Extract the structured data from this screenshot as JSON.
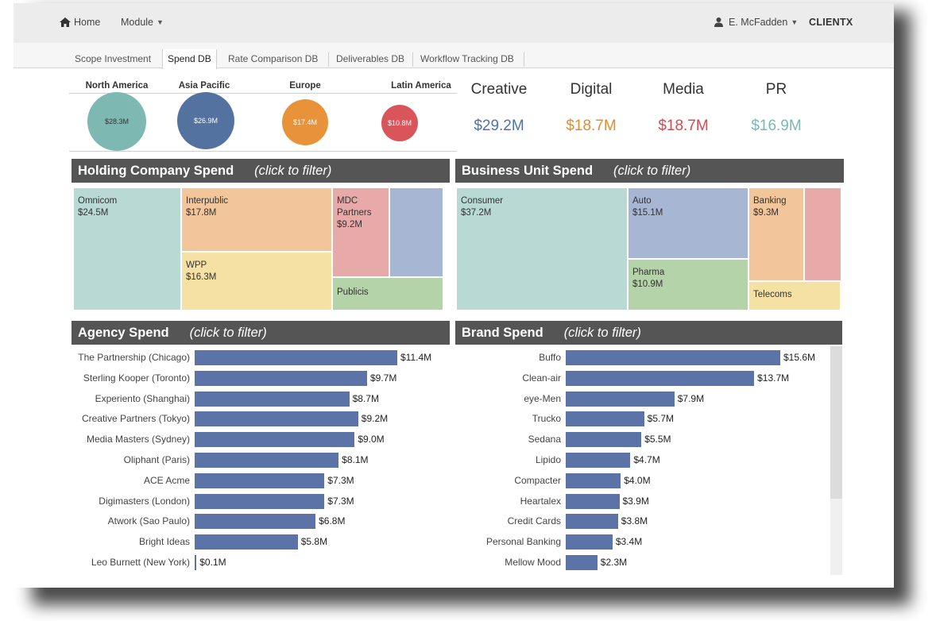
{
  "nav": {
    "home_label": "Home",
    "module_label": "Module",
    "user_label": "E. McFadden",
    "client_label": "CLIENTX"
  },
  "tabs": [
    {
      "label": "Scope Investment",
      "active": false
    },
    {
      "label": "Spend DB",
      "active": true
    },
    {
      "label": "Rate Comparison DB",
      "active": false
    },
    {
      "label": "Deliverables DB",
      "active": false
    },
    {
      "label": "Workflow Tracking DB",
      "active": false
    }
  ],
  "regions": [
    {
      "name": "North America",
      "value": "$28.3M",
      "color": "#7eb8b2"
    },
    {
      "name": "Asia Pacific",
      "value": "$26.9M",
      "color": "#5472a0"
    },
    {
      "name": "Europe",
      "value": "$17.4M",
      "color": "#e8923a"
    },
    {
      "name": "Latin America",
      "value": "$10.8M",
      "color": "#d9555a"
    }
  ],
  "categories": [
    {
      "name": "Creative",
      "value": "$29.2M",
      "color": "#4e73a8"
    },
    {
      "name": "Digital",
      "value": "$18.7M",
      "color": "#e58a2e"
    },
    {
      "name": "Media",
      "value": "$18.7M",
      "color": "#d9474f"
    },
    {
      "name": "PR",
      "value": "$16.9M",
      "color": "#7ab9b1"
    }
  ],
  "holding": {
    "title": "Holding Company Spend",
    "hint": "(click to filter)",
    "items": [
      {
        "name": "Omnicom",
        "value": "$24.5M",
        "color": "#b9d9d5"
      },
      {
        "name": "Interpublic",
        "value": "$17.8M",
        "color": "#f2c59a"
      },
      {
        "name": "WPP",
        "value": "$16.3M",
        "color": "#f4e1a3"
      },
      {
        "name": "MDC\nPartners",
        "value": "$9.2M",
        "color": "#e8aaa9"
      },
      {
        "name": "",
        "value": "",
        "color": "#a7b6d2"
      },
      {
        "name": "Publicis",
        "value": "",
        "color": "#b4d3a9"
      }
    ]
  },
  "business": {
    "title": "Business Unit Spend",
    "hint": "(click to filter)",
    "items": [
      {
        "name": "Consumer",
        "value": "$37.2M",
        "color": "#b9d9d5"
      },
      {
        "name": "Auto",
        "value": "$15.1M",
        "color": "#a7b6d2"
      },
      {
        "name": "Pharma",
        "value": "$10.9M",
        "color": "#b4d3a9"
      },
      {
        "name": "Banking",
        "value": "$9.3M",
        "color": "#f2c59a"
      },
      {
        "name": "",
        "value": "",
        "color": "#e8aaa9"
      },
      {
        "name": "Telecoms",
        "value": "",
        "color": "#f4e1a3"
      }
    ]
  },
  "agency": {
    "title": "Agency Spend",
    "hint": "(click to filter)"
  },
  "brand": {
    "title": "Brand Spend",
    "hint": "(click to filter)"
  },
  "chart_data": [
    {
      "type": "bar",
      "title": "Agency Spend",
      "orientation": "horizontal",
      "categories": [
        "The Partnership (Chicago)",
        "Sterling Kooper (Toronto)",
        "Experiento (Shanghai)",
        "Creative Partners (Tokyo)",
        "Media Masters (Sydney)",
        "Oliphant (Paris)",
        "ACE Acme",
        "Digimasters (London)",
        "Atwork (Sao Paulo)",
        "Bright Ideas",
        "Leo Burnett (New York)"
      ],
      "values": [
        11.4,
        9.7,
        8.7,
        9.2,
        9.0,
        8.1,
        7.3,
        7.3,
        6.8,
        5.8,
        0.1
      ],
      "value_labels": [
        "$11.4M",
        "$9.7M",
        "$8.7M",
        "$9.2M",
        "$9.0M",
        "$8.1M",
        "$7.3M",
        "$7.3M",
        "$6.8M",
        "$5.8M",
        "$0.1M"
      ],
      "color": "#5b73a6"
    },
    {
      "type": "bar",
      "title": "Brand Spend",
      "orientation": "horizontal",
      "categories": [
        "Buffo",
        "Clean-air",
        "eye-Men",
        "Trucko",
        "Sedana",
        "Lipido",
        "Compacter",
        "Heartalex",
        "Credit Cards",
        "Personal Banking",
        "Mellow Mood"
      ],
      "values": [
        15.6,
        13.7,
        7.9,
        5.7,
        5.5,
        4.7,
        4.0,
        3.9,
        3.8,
        3.4,
        2.3
      ],
      "value_labels": [
        "$15.6M",
        "$13.7M",
        "$7.9M",
        "$5.7M",
        "$5.5M",
        "$4.7M",
        "$4.0M",
        "$3.9M",
        "$3.8M",
        "$3.4M",
        "$2.3M"
      ],
      "color": "#5b73a6"
    }
  ]
}
